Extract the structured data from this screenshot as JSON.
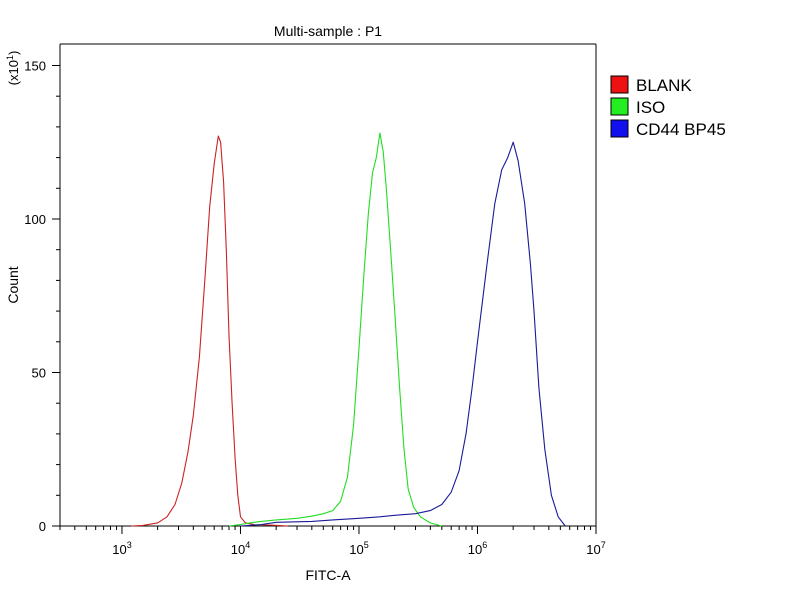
{
  "chart_data": {
    "type": "line",
    "title": "Multi-sample : P1",
    "xlabel": "FITC-A",
    "ylabel": "Count",
    "y_multiplier": "(x10",
    "y_multiplier_exp": "1",
    "y_multiplier_close": ")",
    "x_scale": "log",
    "xlim": [
      300,
      10000000
    ],
    "ylim": [
      0,
      157
    ],
    "grid": false,
    "legend_position": "top-right",
    "x_ticks": [
      {
        "value": 1000,
        "base": "10",
        "exp": "3"
      },
      {
        "value": 10000,
        "base": "10",
        "exp": "4"
      },
      {
        "value": 100000,
        "base": "10",
        "exp": "5"
      },
      {
        "value": 1000000,
        "base": "10",
        "exp": "6"
      },
      {
        "value": 10000000,
        "base": "10",
        "exp": "7"
      }
    ],
    "y_ticks": [
      {
        "value": 0,
        "label": "0"
      },
      {
        "value": 50,
        "label": "50"
      },
      {
        "value": 100,
        "label": "100"
      },
      {
        "value": 150,
        "label": "150"
      }
    ],
    "series": [
      {
        "name": "BLANK",
        "color": "#cc2222",
        "legend_color": "#ee1111",
        "points": [
          [
            1200,
            0
          ],
          [
            1500,
            0.2
          ],
          [
            2000,
            1
          ],
          [
            2400,
            3
          ],
          [
            2800,
            7
          ],
          [
            3200,
            14
          ],
          [
            3600,
            24
          ],
          [
            4000,
            36
          ],
          [
            4500,
            55
          ],
          [
            5000,
            80
          ],
          [
            5500,
            104
          ],
          [
            6000,
            118
          ],
          [
            6500,
            127
          ],
          [
            6800,
            125
          ],
          [
            7200,
            112
          ],
          [
            7600,
            90
          ],
          [
            8000,
            62
          ],
          [
            8500,
            40
          ],
          [
            9000,
            22
          ],
          [
            9500,
            10
          ],
          [
            10000,
            3
          ],
          [
            11000,
            1
          ],
          [
            13000,
            0.5
          ],
          [
            18000,
            0.3
          ],
          [
            25000,
            0
          ]
        ]
      },
      {
        "name": "ISO",
        "color": "#22dd22",
        "legend_color": "#22ee22",
        "points": [
          [
            8000,
            0
          ],
          [
            10000,
            0.5
          ],
          [
            12000,
            1
          ],
          [
            15000,
            1.5
          ],
          [
            20000,
            2
          ],
          [
            30000,
            2.5
          ],
          [
            40000,
            3.2
          ],
          [
            50000,
            4
          ],
          [
            60000,
            5
          ],
          [
            70000,
            8
          ],
          [
            80000,
            16
          ],
          [
            90000,
            33
          ],
          [
            100000,
            58
          ],
          [
            110000,
            82
          ],
          [
            120000,
            102
          ],
          [
            130000,
            115
          ],
          [
            140000,
            120
          ],
          [
            150000,
            128
          ],
          [
            160000,
            122
          ],
          [
            170000,
            110
          ],
          [
            185000,
            90
          ],
          [
            200000,
            70
          ],
          [
            220000,
            45
          ],
          [
            240000,
            25
          ],
          [
            260000,
            12
          ],
          [
            290000,
            6
          ],
          [
            330000,
            3
          ],
          [
            400000,
            1
          ],
          [
            500000,
            0
          ]
        ]
      },
      {
        "name": "CD44 BP45",
        "color": "#1a1a99",
        "legend_color": "#1111ee",
        "points": [
          [
            10000,
            0
          ],
          [
            15000,
            0.5
          ],
          [
            20000,
            1.2
          ],
          [
            40000,
            1.5
          ],
          [
            60000,
            2
          ],
          [
            100000,
            2.5
          ],
          [
            150000,
            3
          ],
          [
            200000,
            3.5
          ],
          [
            300000,
            4
          ],
          [
            400000,
            5
          ],
          [
            500000,
            7
          ],
          [
            600000,
            11
          ],
          [
            700000,
            18
          ],
          [
            800000,
            30
          ],
          [
            900000,
            45
          ],
          [
            1000000,
            60
          ],
          [
            1200000,
            85
          ],
          [
            1400000,
            105
          ],
          [
            1600000,
            116
          ],
          [
            1800000,
            120
          ],
          [
            2000000,
            125
          ],
          [
            2200000,
            119
          ],
          [
            2500000,
            105
          ],
          [
            2800000,
            85
          ],
          [
            3000000,
            70
          ],
          [
            3300000,
            45
          ],
          [
            3700000,
            25
          ],
          [
            4200000,
            10
          ],
          [
            4800000,
            3
          ],
          [
            5500000,
            0
          ]
        ]
      }
    ]
  }
}
